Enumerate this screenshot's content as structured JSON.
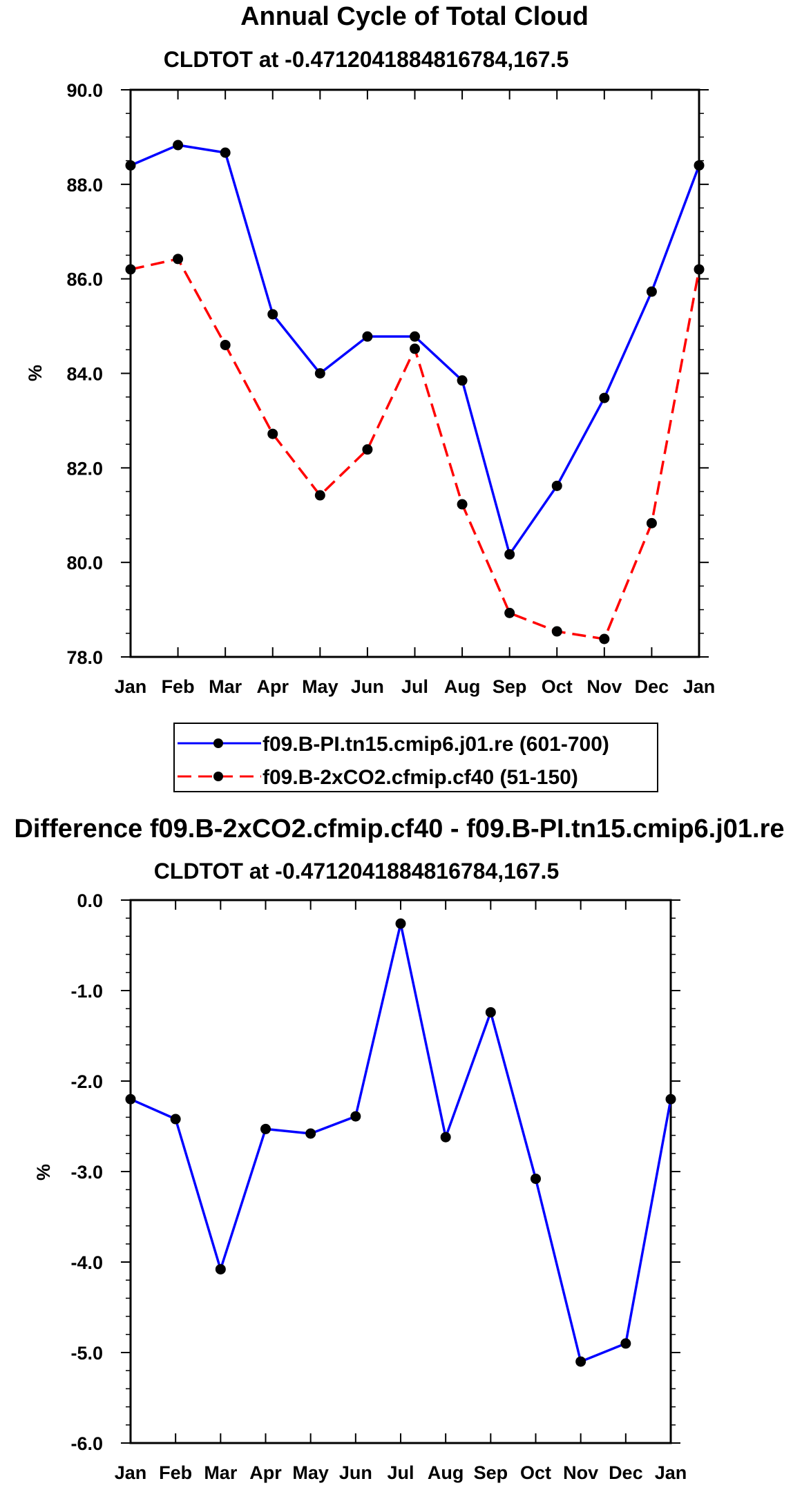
{
  "chart_data": [
    {
      "type": "line",
      "title": "Annual Cycle of Total Cloud",
      "subtitle": "CLDTOT at -0.4712041884816784,167.5",
      "xlabel": "",
      "ylabel": "%",
      "categories": [
        "Jan",
        "Feb",
        "Mar",
        "Apr",
        "May",
        "Jun",
        "Jul",
        "Aug",
        "Sep",
        "Oct",
        "Nov",
        "Dec",
        "Jan"
      ],
      "ylim": [
        78.0,
        90.0
      ],
      "yticks": [
        "78.0",
        "80.0",
        "82.0",
        "84.0",
        "86.0",
        "88.0",
        "90.0"
      ],
      "series": [
        {
          "name": "f09.B-PI.tn15.cmip6.j01.re (601-700)",
          "color": "#0000ff",
          "dash": "solid",
          "values": [
            88.4,
            88.83,
            88.67,
            85.25,
            84.0,
            84.78,
            84.78,
            83.85,
            80.17,
            81.62,
            83.48,
            85.73,
            88.4
          ]
        },
        {
          "name": "f09.B-2xCO2.cfmip.cf40 (51-150)",
          "color": "#ff0000",
          "dash": "dashed",
          "values": [
            86.2,
            86.42,
            84.6,
            82.72,
            81.42,
            82.39,
            84.52,
            81.23,
            78.93,
            78.54,
            78.38,
            80.83,
            86.2
          ]
        }
      ],
      "legend": "below"
    },
    {
      "type": "line",
      "title": "Difference f09.B-2xCO2.cfmip.cf40 - f09.B-PI.tn15.cmip6.j01.re",
      "subtitle": "CLDTOT at -0.4712041884816784,167.5",
      "xlabel": "",
      "ylabel": "%",
      "categories": [
        "Jan",
        "Feb",
        "Mar",
        "Apr",
        "May",
        "Jun",
        "Jul",
        "Aug",
        "Sep",
        "Oct",
        "Nov",
        "Dec",
        "Jan"
      ],
      "ylim": [
        -6.0,
        0.0
      ],
      "yticks": [
        "-6.0",
        "-5.0",
        "-4.0",
        "-3.0",
        "-2.0",
        "-1.0",
        "0.0"
      ],
      "series": [
        {
          "name": "Difference",
          "color": "#0000ff",
          "dash": "solid",
          "values": [
            -2.2,
            -2.42,
            -4.08,
            -2.53,
            -2.58,
            -2.39,
            -0.26,
            -2.62,
            -1.24,
            -3.08,
            -5.1,
            -4.9,
            -2.2
          ]
        }
      ]
    }
  ]
}
